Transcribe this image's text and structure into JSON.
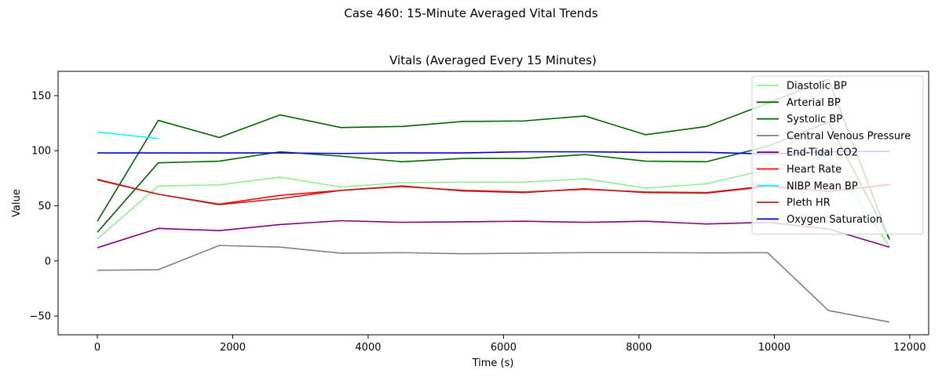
{
  "figure_title": "Case 460: 15-Minute Averaged Vital Trends",
  "chart_data": {
    "type": "line",
    "title": "Vitals (Averaged Every 15 Minutes)",
    "xlabel": "Time (s)",
    "ylabel": "Value",
    "xlim": [
      -580,
      12280
    ],
    "ylim": [
      -67,
      172
    ],
    "xticks": [
      0,
      2000,
      4000,
      6000,
      8000,
      10000,
      12000
    ],
    "xtick_labels": [
      "0",
      "2000",
      "4000",
      "6000",
      "8000",
      "10000",
      "12000"
    ],
    "yticks": [
      -50,
      0,
      50,
      100,
      150
    ],
    "ytick_labels": [
      "−50",
      "0",
      "50",
      "100",
      "150"
    ],
    "grid": false,
    "legend_position": "top-right",
    "x": [
      0,
      900,
      1800,
      2700,
      3600,
      4500,
      5400,
      6300,
      7200,
      8100,
      9000,
      9900,
      10800,
      11700
    ],
    "series": [
      {
        "name": "Diastolic BP",
        "color": "#90ee90",
        "values": [
          20,
          68,
          69,
          76,
          67,
          71,
          71.5,
          71.5,
          74.5,
          66,
          70,
          83,
          96,
          13
        ]
      },
      {
        "name": "Arterial BP",
        "color": "#006400",
        "values": [
          36,
          127.5,
          112,
          132.5,
          121,
          122,
          126.5,
          127,
          131.5,
          114.5,
          122,
          143,
          165,
          19.5
        ]
      },
      {
        "name": "Systolic BP",
        "color": "#006400",
        "values": [
          26,
          89,
          90.5,
          99,
          95,
          90,
          93,
          93,
          96.5,
          90.5,
          90,
          104,
          126,
          20
        ]
      },
      {
        "name": "Central Venous Pressure",
        "color": "#808080",
        "values": [
          -8.5,
          -8,
          14,
          12.5,
          7,
          7.5,
          6.5,
          7,
          7.5,
          7.5,
          7.3,
          7.5,
          -45,
          -55.5
        ]
      },
      {
        "name": "End-Tidal CO2",
        "color": "#800080",
        "values": [
          12,
          29.5,
          27.5,
          33,
          36.5,
          35,
          35.5,
          36,
          35,
          36,
          33.5,
          35,
          29,
          12.5
        ]
      },
      {
        "name": "Heart Rate",
        "color": "#ff0000",
        "values": [
          74,
          60.5,
          51.5,
          59.5,
          64,
          67.5,
          64,
          62.5,
          65,
          62.5,
          62,
          68,
          63,
          69
        ]
      },
      {
        "name": "NIBP Mean BP",
        "color": "#00ffff",
        "values": [
          117,
          111,
          null,
          null,
          null,
          null,
          null,
          null,
          null,
          null,
          null,
          null,
          null,
          null
        ]
      },
      {
        "name": "Pleth HR",
        "color": "#b22222",
        "values": [
          73.5,
          60.5,
          51,
          56.5,
          64,
          68,
          63.5,
          62,
          65.5,
          62,
          61.5,
          67.5,
          63,
          69.5
        ]
      },
      {
        "name": "Oxygen Saturation",
        "color": "#0000cd",
        "values": [
          98,
          98,
          98,
          98,
          97.5,
          98,
          98,
          99,
          99,
          98.5,
          98.5,
          97,
          99,
          99.5
        ]
      }
    ]
  }
}
